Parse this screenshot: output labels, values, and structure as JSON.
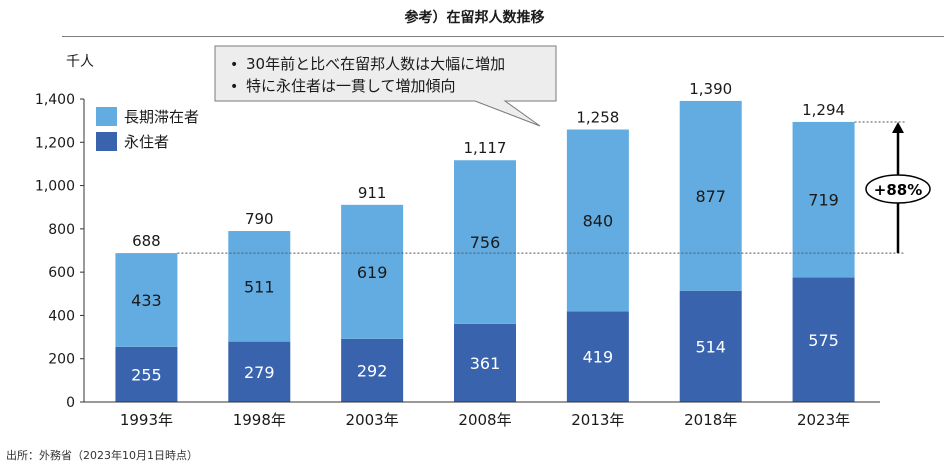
{
  "title": "参考）在留邦人数推移",
  "source": "出所：外務省（2023年10月1日時点）",
  "callout": {
    "lines": [
      "30年前と比べ在留邦人数は大幅に増加",
      "特に永住者は一貫して増加傾向"
    ],
    "bullet": "•"
  },
  "growth_label": "+88%",
  "colors": {
    "long_term": "#62ACE1",
    "permanent": "#3A63AE",
    "total_label": "#1a1a1a"
  },
  "chart_data": {
    "type": "bar",
    "stacked": true,
    "ylabel": "千人",
    "ylim": [
      0,
      1400
    ],
    "yticks": [
      0,
      200,
      400,
      600,
      800,
      1000,
      1200,
      1400
    ],
    "yticklabels": [
      "0",
      "200",
      "400",
      "600",
      "800",
      "1,000",
      "1,200",
      "1,400"
    ],
    "categories": [
      "1993年",
      "1998年",
      "2003年",
      "2008年",
      "2013年",
      "2018年",
      "2023年"
    ],
    "series": [
      {
        "name": "永住者",
        "values": [
          255,
          279,
          292,
          361,
          419,
          514,
          575
        ]
      },
      {
        "name": "長期滞在者",
        "values": [
          433,
          511,
          619,
          756,
          840,
          877,
          719
        ]
      }
    ],
    "totals": [
      688,
      790,
      911,
      1117,
      1258,
      1390,
      1294
    ],
    "total_labels": [
      "688",
      "790",
      "911",
      "1,117",
      "1,258",
      "1,390",
      "1,294"
    ],
    "legend": [
      {
        "name": "長期滞在者",
        "color": "#62ACE1"
      },
      {
        "name": "永住者",
        "color": "#3A63AE"
      }
    ],
    "legend_position": "top-left",
    "grid": false
  }
}
